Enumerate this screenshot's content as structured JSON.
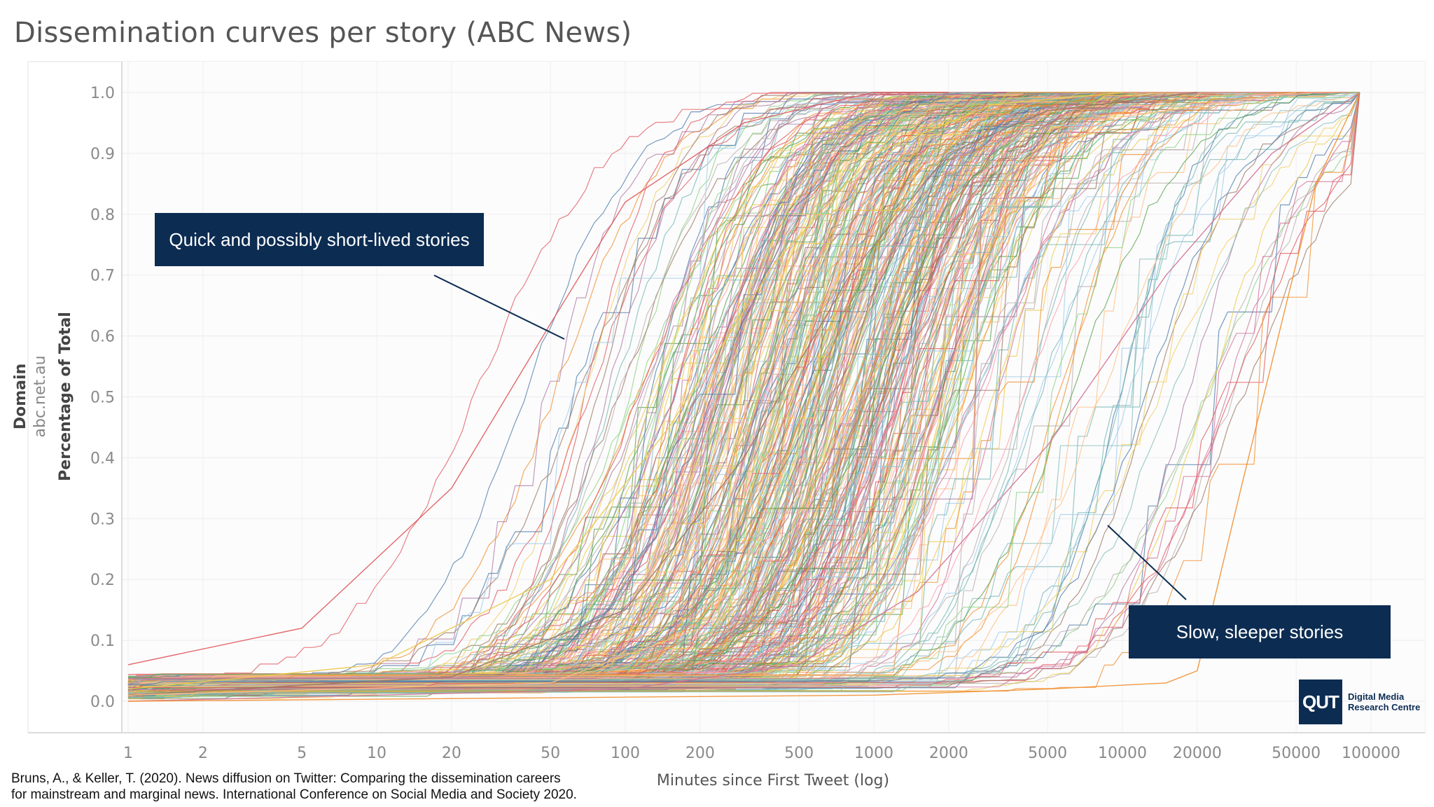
{
  "title": "Dissemination curves per story (ABC News)",
  "chart_data": {
    "type": "line",
    "title": "Dissemination curves per story (ABC News)",
    "xlabel": "Minutes since First Tweet (log)",
    "ylabel": "Percentage of Total",
    "ylabel_header": "Domain",
    "ylabel_value": "abc.net.au",
    "xscale": "log",
    "xlim": [
      1,
      100000
    ],
    "ylim": [
      0,
      1.0
    ],
    "x_ticks": [
      "1",
      "2",
      "5",
      "10",
      "20",
      "50",
      "100",
      "200",
      "500",
      "1000",
      "2000",
      "5000",
      "10000",
      "20000",
      "50000",
      "100000"
    ],
    "y_ticks": [
      "0.0",
      "0.1",
      "0.2",
      "0.3",
      "0.4",
      "0.5",
      "0.6",
      "0.7",
      "0.8",
      "0.9",
      "1.0"
    ],
    "grid": true,
    "legend": "none",
    "series_summary": "Several hundred cumulative dissemination curves, one per story, each rising from near 0 to 1.0; most reach 0.5 between about 200 and 2000 minutes.",
    "series": [
      {
        "x": [
          1,
          5,
          20,
          50,
          100,
          300,
          600,
          1000,
          2000
        ],
        "y": [
          0.06,
          0.12,
          0.35,
          0.62,
          0.82,
          0.95,
          0.98,
          1.0,
          1.0
        ]
      },
      {
        "x": [
          1,
          10,
          50,
          150,
          400,
          1000,
          3000,
          10000
        ],
        "y": [
          0.02,
          0.06,
          0.2,
          0.45,
          0.72,
          0.9,
          0.98,
          1.0
        ]
      },
      {
        "x": [
          1,
          20,
          100,
          300,
          800,
          2000,
          5000,
          20000
        ],
        "y": [
          0.01,
          0.04,
          0.15,
          0.4,
          0.7,
          0.9,
          0.97,
          1.0
        ]
      },
      {
        "x": [
          1,
          50,
          200,
          600,
          1500,
          4000,
          10000,
          50000
        ],
        "y": [
          0.01,
          0.03,
          0.12,
          0.38,
          0.66,
          0.88,
          0.96,
          1.0
        ]
      },
      {
        "x": [
          1,
          100,
          500,
          1500,
          5000,
          15000,
          40000,
          90000
        ],
        "y": [
          0.0,
          0.02,
          0.06,
          0.18,
          0.42,
          0.7,
          0.9,
          1.0
        ]
      },
      {
        "x": [
          1,
          1000,
          5000,
          15000,
          20000,
          30000,
          60000,
          90000
        ],
        "y": [
          0.0,
          0.01,
          0.02,
          0.03,
          0.05,
          0.35,
          0.85,
          1.0
        ]
      }
    ],
    "colors": [
      "#4e79a7",
      "#f28e2b",
      "#e15759",
      "#76b7b2",
      "#59a14f",
      "#edc948",
      "#b07aa1",
      "#ff9da7",
      "#9c755f",
      "#bab0ac",
      "#a0cbe8",
      "#ffbe7d",
      "#8cd17d",
      "#f1ce63",
      "#d37295",
      "#86bcb6"
    ]
  },
  "annotations": {
    "quick": "Quick and possibly short-lived stories",
    "slow": "Slow, sleeper stories"
  },
  "citation": "Bruns, A., & Keller, T. (2020). News diffusion on Twitter: Comparing the dissemination careers\nfor mainstream and marginal news. International Conference on Social Media and Society 2020.",
  "logo": {
    "mark": "QUT",
    "text": "Digital Media\nResearch Centre"
  }
}
